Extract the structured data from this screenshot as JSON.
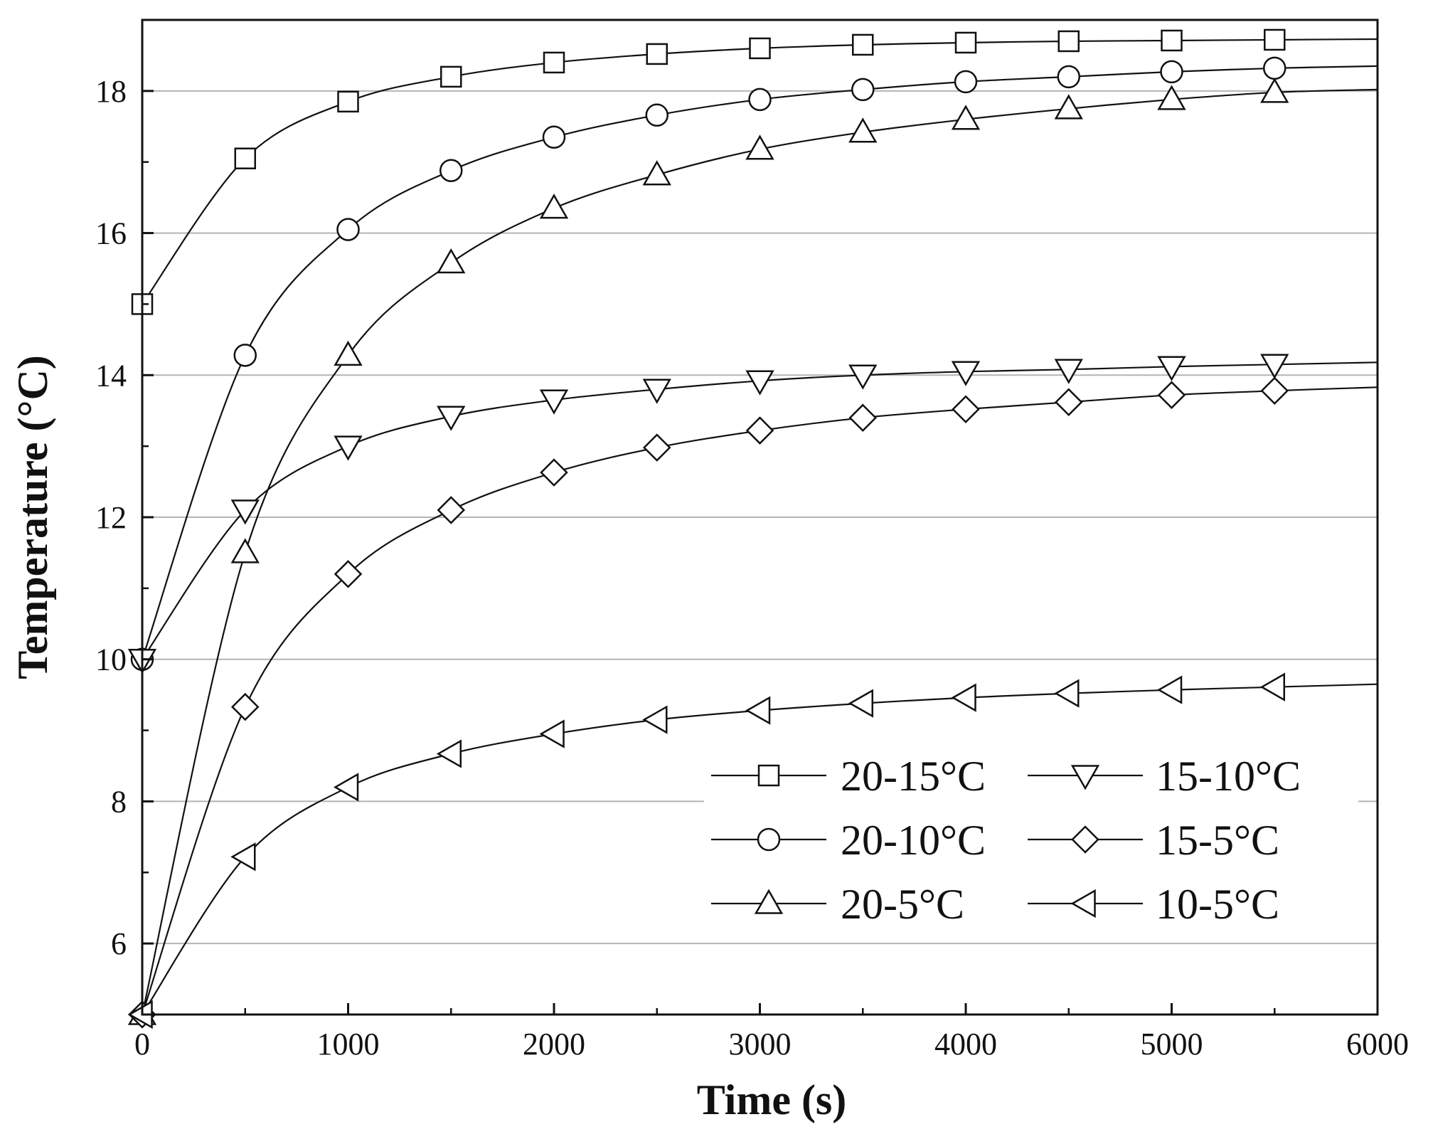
{
  "chart_data": {
    "type": "line",
    "title": "",
    "xlabel": "Time (s)",
    "ylabel": "Temperature (°C)",
    "xlim": [
      0,
      6000
    ],
    "ylim": [
      5,
      19
    ],
    "xticks": [
      0,
      1000,
      2000,
      3000,
      4000,
      5000,
      6000
    ],
    "yticks": [
      6,
      8,
      10,
      12,
      14,
      16,
      18
    ],
    "grid": "horizontal",
    "legend_position": "lower-right",
    "x": [
      0,
      500,
      1000,
      1500,
      2000,
      2500,
      3000,
      3500,
      4000,
      4500,
      5000,
      5500
    ],
    "series": [
      {
        "name": "20-15°C",
        "marker": "square",
        "values": [
          15.0,
          17.05,
          17.85,
          18.2,
          18.4,
          18.52,
          18.6,
          18.65,
          18.68,
          18.7,
          18.71,
          18.72
        ],
        "end_value": 18.73
      },
      {
        "name": "20-10°C",
        "marker": "circle",
        "values": [
          10.0,
          14.28,
          16.05,
          16.88,
          17.35,
          17.66,
          17.88,
          18.02,
          18.13,
          18.2,
          18.27,
          18.32
        ],
        "end_value": 18.35
      },
      {
        "name": "20-5°C",
        "marker": "triangle-up",
        "values": [
          5.0,
          11.5,
          14.28,
          15.58,
          16.35,
          16.82,
          17.18,
          17.42,
          17.6,
          17.75,
          17.88,
          17.98
        ],
        "end_value": 18.02
      },
      {
        "name": "15-10°C",
        "marker": "triangle-down",
        "values": [
          10.0,
          12.1,
          13.0,
          13.42,
          13.65,
          13.8,
          13.92,
          14.0,
          14.05,
          14.08,
          14.12,
          14.15
        ],
        "end_value": 14.18
      },
      {
        "name": "15-5°C",
        "marker": "diamond",
        "values": [
          5.0,
          9.33,
          11.2,
          12.1,
          12.63,
          12.98,
          13.22,
          13.4,
          13.52,
          13.62,
          13.72,
          13.78
        ],
        "end_value": 13.83
      },
      {
        "name": "10-5°C",
        "marker": "triangle-left",
        "values": [
          5.0,
          7.22,
          8.2,
          8.67,
          8.95,
          9.15,
          9.28,
          9.38,
          9.46,
          9.52,
          9.57,
          9.61
        ],
        "end_value": 9.65
      }
    ]
  }
}
